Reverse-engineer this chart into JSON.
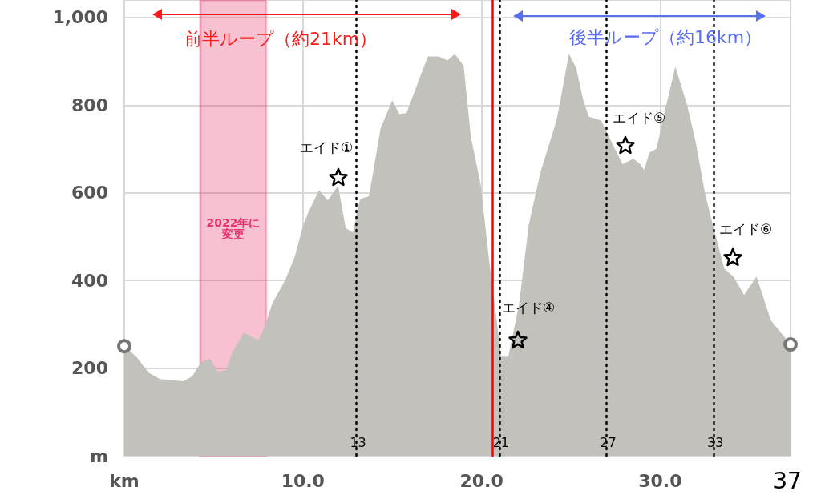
{
  "chart_data": {
    "type": "area",
    "color": "#c2c1bc",
    "x": [
      0,
      0.67,
      1.35,
      2.0,
      3.3,
      3.8,
      4.3,
      4.8,
      5.25,
      5.7,
      6.05,
      6.7,
      7.5,
      7.85,
      8.3,
      9.0,
      9.55,
      10.0,
      10.3,
      10.9,
      11.4,
      11.97,
      12.4,
      12.8,
      13.2,
      13.7,
      14.35,
      15.0,
      15.4,
      15.8,
      16.4,
      17.0,
      17.6,
      18.1,
      18.5,
      19.0,
      19.4,
      19.95,
      20.4,
      20.85,
      21.1,
      21.5,
      22.1,
      22.65,
      23.3,
      24.2,
      24.9,
      25.3,
      25.7,
      26.0,
      26.7,
      27.35,
      27.9,
      28.5,
      28.9,
      29.1,
      29.4,
      29.8,
      30.3,
      30.85,
      31.5,
      31.97,
      32.5,
      33.05,
      33.6,
      34.1,
      34.7,
      35.4,
      36.2,
      37.3
    ],
    "values": [
      250,
      226,
      190,
      175,
      170,
      181,
      214,
      221,
      192,
      195,
      236,
      281,
      263,
      294,
      349,
      400,
      455,
      524,
      555,
      606,
      583,
      616,
      519,
      510,
      586,
      592,
      747,
      811,
      780,
      782,
      847,
      911,
      911,
      902,
      917,
      890,
      729,
      619,
      455,
      309,
      226,
      226,
      345,
      528,
      647,
      765,
      917,
      884,
      811,
      774,
      765,
      710,
      665,
      678,
      665,
      652,
      692,
      701,
      793,
      888,
      802,
      720,
      601,
      510,
      427,
      409,
      367,
      409,
      309,
      254
    ],
    "xlim": [
      0,
      37.3
    ],
    "ylim": [
      0,
      1040
    ],
    "xticks": [
      {
        "value": 0,
        "label": "km"
      },
      {
        "value": 10,
        "label": "10.0"
      },
      {
        "value": 20,
        "label": "20.0"
      },
      {
        "value": 30,
        "label": "30.0"
      }
    ],
    "yticks": [
      {
        "value": 0,
        "label": "m"
      },
      200,
      400,
      600,
      800,
      {
        "value": 1000,
        "label": "1,000"
      }
    ],
    "grid": true,
    "ref_lines": [
      {
        "axis": "x",
        "value": 20.6,
        "label": null,
        "color": "#ff0000",
        "line_style": "solid"
      },
      {
        "axis": "x",
        "value": 13,
        "label": "13",
        "color": "#000000",
        "line_style": "dotted"
      },
      {
        "axis": "x",
        "value": 21,
        "label": "21",
        "color": "#000000",
        "line_style": "dotted"
      },
      {
        "axis": "x",
        "value": 27,
        "label": "27",
        "color": "#000000",
        "line_style": "dotted"
      },
      {
        "axis": "x",
        "value": 33,
        "label": "33",
        "color": "#000000",
        "line_style": "dotted"
      }
    ],
    "bands": [
      {
        "axis": "x",
        "from": 4.26,
        "to": 7.94,
        "label": "2022年に変更",
        "color": "#e8336b"
      }
    ],
    "annotations": [
      "前半ループ（約21km）",
      "後半ループ（約16km）",
      "エイド①",
      "エイド④",
      "エイド⑤",
      "エイド⑥",
      "37"
    ]
  }
}
